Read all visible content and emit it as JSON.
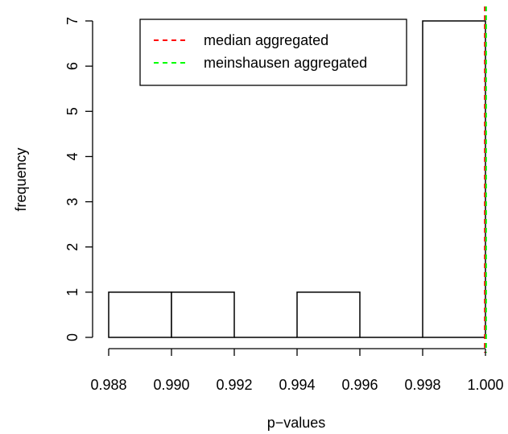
{
  "chart_data": {
    "type": "histogram",
    "title": "",
    "xlabel": "p−values",
    "ylabel": "frequency",
    "xlim": [
      0.988,
      1.0
    ],
    "ylim": [
      0,
      7
    ],
    "x_ticks": [
      "0.988",
      "0.990",
      "0.992",
      "0.994",
      "0.996",
      "0.998",
      "1.000"
    ],
    "y_ticks": [
      "0",
      "1",
      "2",
      "3",
      "4",
      "5",
      "6",
      "7"
    ],
    "bins": [
      {
        "start": 0.988,
        "end": 0.99,
        "count": 1
      },
      {
        "start": 0.99,
        "end": 0.992,
        "count": 1
      },
      {
        "start": 0.992,
        "end": 0.994,
        "count": 0
      },
      {
        "start": 0.994,
        "end": 0.996,
        "count": 1
      },
      {
        "start": 0.996,
        "end": 0.998,
        "count": 0
      },
      {
        "start": 0.998,
        "end": 1.0,
        "count": 7
      }
    ],
    "reference_lines": [
      {
        "name": "median aggregated",
        "x": 1.0,
        "color": "#ff0000",
        "style": "dashed"
      },
      {
        "name": "meinshausen aggregated",
        "x": 1.0,
        "color": "#00ff00",
        "style": "dashed"
      }
    ],
    "legend": {
      "placement": "top",
      "entries": [
        "median aggregated",
        "meinshausen aggregated"
      ]
    },
    "grid": false
  }
}
